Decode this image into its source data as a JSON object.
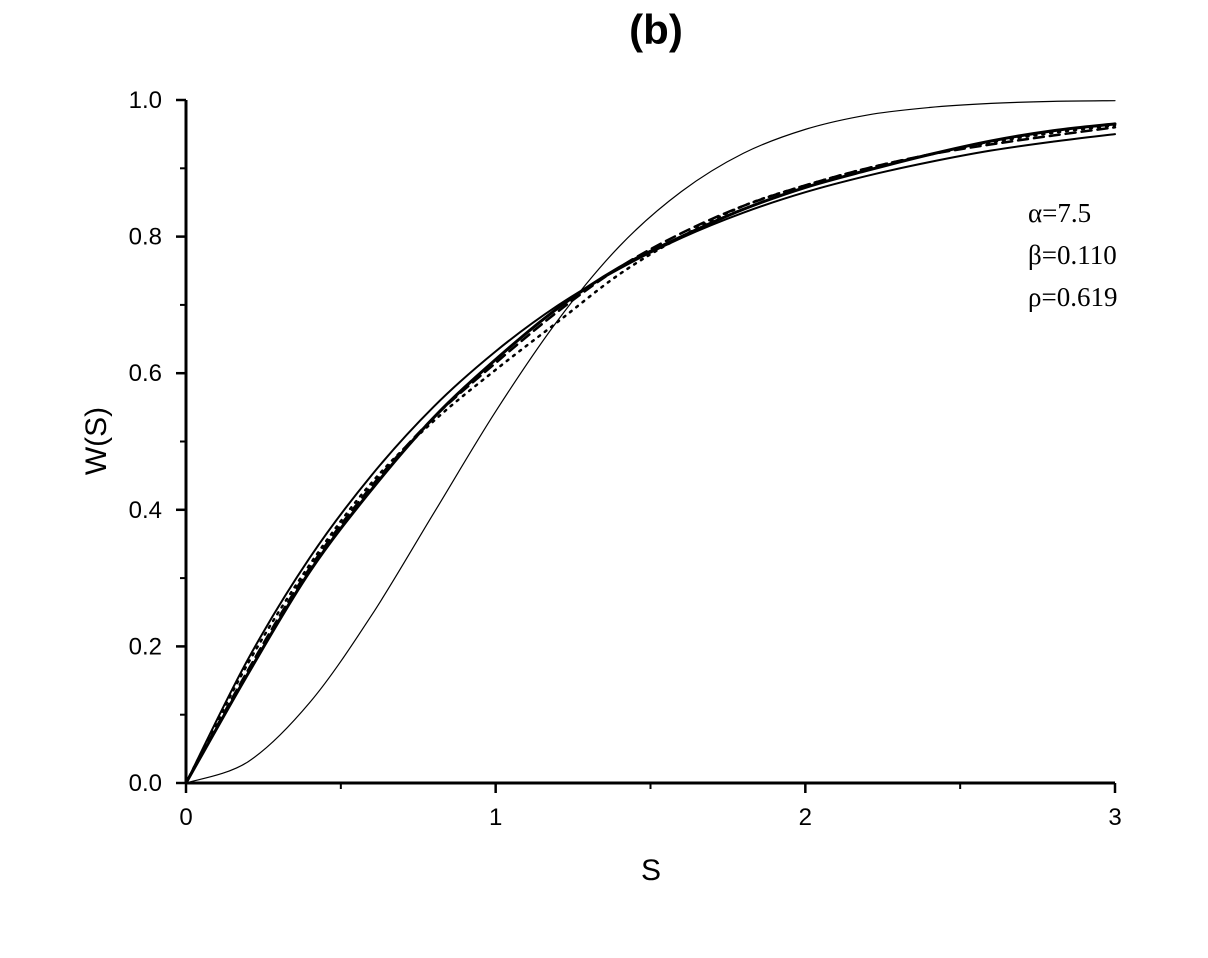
{
  "chart_data": {
    "type": "line",
    "title": "(b)",
    "xlabel": "S",
    "ylabel": "W(S)",
    "xlim": [
      0,
      3
    ],
    "ylim": [
      0,
      1
    ],
    "x_ticks": [
      "0",
      "1",
      "2",
      "3"
    ],
    "y_ticks": [
      "0.0",
      "0.2",
      "0.4",
      "0.6",
      "0.8",
      "1.0"
    ],
    "grid": false,
    "annotations": [
      "α=7.5",
      "β=0.110",
      "ρ=0.619"
    ],
    "series": [
      {
        "style": "thin-solid",
        "x": [
          0,
          0.2,
          0.4,
          0.6,
          0.8,
          1.0,
          1.2,
          1.4,
          1.6,
          1.8,
          2.0,
          2.2,
          2.4,
          2.6,
          2.8,
          3.0
        ],
        "y": [
          0,
          0.031,
          0.118,
          0.246,
          0.395,
          0.544,
          0.677,
          0.786,
          0.866,
          0.922,
          0.957,
          0.978,
          0.989,
          0.995,
          0.998,
          0.999
        ]
      },
      {
        "style": "solid",
        "x": [
          0,
          0.2,
          0.4,
          0.6,
          0.8,
          1.0,
          1.2,
          1.4,
          1.6,
          1.8,
          2.0,
          2.2,
          2.4,
          2.6,
          2.8,
          3.0
        ],
        "y": [
          0,
          0.181,
          0.33,
          0.451,
          0.551,
          0.632,
          0.699,
          0.753,
          0.798,
          0.835,
          0.865,
          0.889,
          0.909,
          0.926,
          0.939,
          0.95
        ]
      },
      {
        "style": "thick-solid",
        "x": [
          0,
          0.2,
          0.4,
          0.6,
          0.8,
          1.0,
          1.2,
          1.4,
          1.6,
          1.8,
          2.0,
          2.2,
          2.4,
          2.6,
          2.8,
          3.0
        ],
        "y": [
          0,
          0.16,
          0.31,
          0.43,
          0.535,
          0.62,
          0.695,
          0.755,
          0.8,
          0.84,
          0.872,
          0.897,
          0.92,
          0.94,
          0.955,
          0.965
        ]
      },
      {
        "style": "dashed",
        "x": [
          0,
          0.2,
          0.4,
          0.6,
          0.8,
          1.0,
          1.2,
          1.4,
          1.6,
          1.8,
          2.0,
          2.2,
          2.4,
          2.6,
          2.8,
          3.0
        ],
        "y": [
          0,
          0.165,
          0.315,
          0.435,
          0.535,
          0.615,
          0.69,
          0.755,
          0.805,
          0.845,
          0.875,
          0.9,
          0.92,
          0.935,
          0.948,
          0.96
        ]
      },
      {
        "style": "dotted",
        "x": [
          0,
          0.2,
          0.4,
          0.6,
          0.8,
          1.0,
          1.2,
          1.4,
          1.6,
          1.8,
          2.0,
          2.2,
          2.4,
          2.6,
          2.8,
          3.0
        ],
        "y": [
          0,
          0.175,
          0.32,
          0.44,
          0.53,
          0.605,
          0.675,
          0.745,
          0.8,
          0.845,
          0.875,
          0.9,
          0.92,
          0.938,
          0.952,
          0.963
        ]
      }
    ]
  }
}
